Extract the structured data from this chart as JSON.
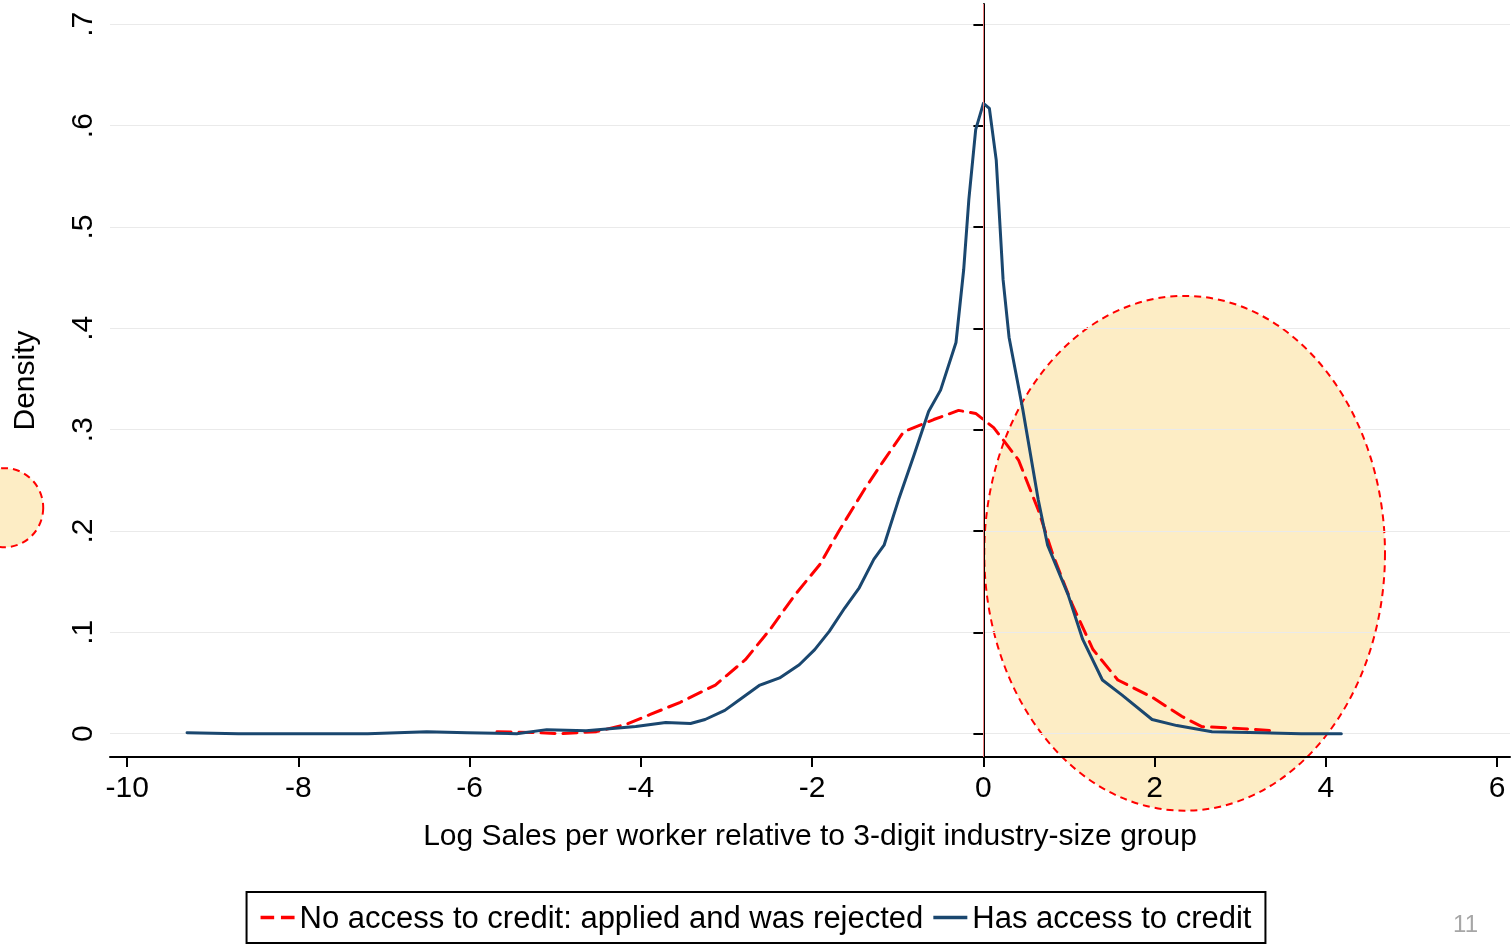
{
  "chart_data": {
    "type": "line",
    "xlabel": "Log Sales per worker relative to 3-digit industry-size group",
    "ylabel": "Density",
    "xlim": [
      -10.2,
      6.15
    ],
    "ylim": [
      -0.023,
      0.72
    ],
    "xticks": [
      -10,
      -8,
      -6,
      -4,
      -2,
      0,
      2,
      4,
      6
    ],
    "yticks": [
      {
        "value": 0,
        "label": "0"
      },
      {
        "value": 0.1,
        "label": ".1"
      },
      {
        "value": 0.2,
        "label": ".2"
      },
      {
        "value": 0.3,
        "label": ".3"
      },
      {
        "value": 0.4,
        "label": ".4"
      },
      {
        "value": 0.5,
        "label": ".5"
      },
      {
        "value": 0.6,
        "label": ".6"
      },
      {
        "value": 0.7,
        "label": ".7"
      }
    ],
    "grid": "y",
    "legend": "bottom",
    "marker": "none",
    "ref_lines": [
      {
        "axis": "x",
        "value": 0,
        "color": "#f08080",
        "line_style": "solid"
      }
    ],
    "annotations": [
      "11"
    ],
    "series": [
      {
        "name": "No access to credit: applied and was rejected",
        "color": "#ff0000",
        "line_style": "dashed",
        "x": [
          -5.68,
          -5.22,
          -4.93,
          -4.52,
          -4.18,
          -3.89,
          -3.54,
          -3.13,
          -2.78,
          -2.49,
          -2.2,
          -1.91,
          -1.68,
          -1.39,
          -1.16,
          -0.93,
          -0.58,
          -0.29,
          -0.09,
          0.12,
          0.23,
          0.41,
          0.64,
          0.81,
          1.04,
          1.28,
          1.57,
          1.97,
          2.32,
          2.55,
          3.02,
          3.36
        ],
        "values": [
          0.002,
          0.001,
          0,
          0.002,
          0.009,
          0.019,
          0.031,
          0.048,
          0.073,
          0.103,
          0.137,
          0.167,
          0.201,
          0.241,
          0.27,
          0.298,
          0.31,
          0.319,
          0.316,
          0.302,
          0.29,
          0.27,
          0.221,
          0.177,
          0.127,
          0.083,
          0.053,
          0.036,
          0.017,
          0.007,
          0.005,
          0.003
        ]
      },
      {
        "name": "Has access to credit",
        "color": "#1a476f",
        "line_style": "solid",
        "x": [
          -9.3,
          -8.7,
          -7.19,
          -6.5,
          -6.03,
          -5.45,
          -5.1,
          -4.64,
          -4.06,
          -3.71,
          -3.42,
          -3.25,
          -3.02,
          -2.84,
          -2.61,
          -2.38,
          -2.15,
          -1.97,
          -1.8,
          -1.62,
          -1.45,
          -1.28,
          -1.16,
          -0.99,
          -0.81,
          -0.64,
          -0.5,
          -0.32,
          -0.23,
          -0.17,
          -0.09,
          0,
          0.07,
          0.15,
          0.23,
          0.3,
          0.46,
          0.64,
          0.75,
          0.99,
          1.16,
          1.39,
          1.62,
          1.97,
          2.26,
          2.67,
          3.25,
          3.71,
          4.18
        ],
        "values": [
          0.001,
          0,
          0,
          0.002,
          0.001,
          0,
          0.004,
          0.003,
          0.007,
          0.011,
          0.01,
          0.014,
          0.023,
          0.034,
          0.048,
          0.055,
          0.068,
          0.083,
          0.101,
          0.124,
          0.144,
          0.172,
          0.186,
          0.231,
          0.275,
          0.318,
          0.339,
          0.386,
          0.458,
          0.527,
          0.596,
          0.622,
          0.617,
          0.566,
          0.448,
          0.391,
          0.32,
          0.231,
          0.186,
          0.137,
          0.093,
          0.053,
          0.038,
          0.014,
          0.008,
          0.002,
          0.001,
          0,
          0
        ]
      }
    ]
  }
}
